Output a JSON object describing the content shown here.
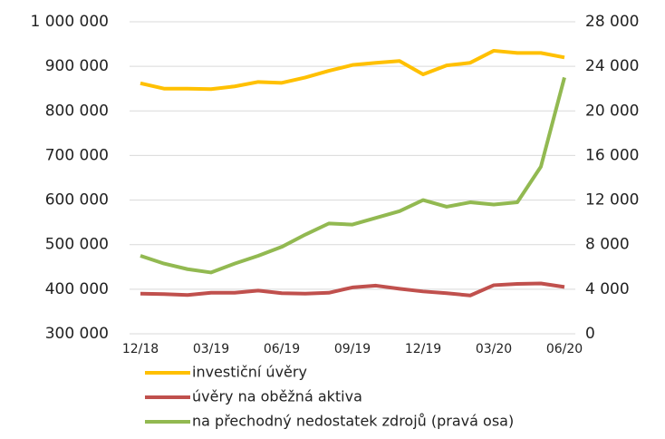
{
  "chart_data": {
    "type": "line",
    "categories": [
      "12/18",
      null,
      null,
      "03/19",
      null,
      null,
      "06/19",
      null,
      null,
      "09/19",
      null,
      null,
      "12/19",
      null,
      null,
      "03/20",
      null,
      null,
      "06/20"
    ],
    "series": [
      {
        "name": "investiční úvěry",
        "color": "#ffc000",
        "values": [
          862000,
          850000,
          850000,
          849000,
          855000,
          865000,
          863000,
          875000,
          890000,
          903000,
          908000,
          912000,
          882000,
          902000,
          908000,
          935000,
          930000,
          930000,
          920000
        ]
      },
      {
        "name": "úvěry na oběžná aktiva",
        "color": "#c0504d",
        "values": [
          390000,
          389000,
          387000,
          392000,
          392000,
          397000,
          391000,
          390000,
          392000,
          404000,
          408000,
          401000,
          395000,
          391000,
          386000,
          409000,
          412000,
          413000,
          405000
        ]
      },
      {
        "name": "na přechodný nedostatek zdrojů (pravá osa)",
        "color": "#92b951",
        "axis": "y2",
        "values": [
          7000,
          6300,
          5800,
          5500,
          6300,
          7000,
          7800,
          8900,
          9900,
          9800,
          10400,
          11000,
          12000,
          11400,
          11800,
          11600,
          11800,
          15000,
          23000
        ]
      }
    ],
    "ylim": [
      300000,
      1000000
    ],
    "yticks": [
      {
        "value": 300000,
        "label": "300 000"
      },
      {
        "value": 400000,
        "label": "400 000"
      },
      {
        "value": 500000,
        "label": "500 000"
      },
      {
        "value": 600000,
        "label": "600 000"
      },
      {
        "value": 700000,
        "label": "700 000"
      },
      {
        "value": 800000,
        "label": "800 000"
      },
      {
        "value": 900000,
        "label": "900 000"
      },
      {
        "value": 1000000,
        "label": "1 000 000"
      }
    ],
    "y2lim": [
      0,
      28000
    ],
    "y2ticks": [
      0,
      {
        "value": 4000,
        "label": "4 000"
      },
      {
        "value": 8000,
        "label": "8 000"
      },
      {
        "value": 12000,
        "label": "12 000"
      },
      {
        "value": 16000,
        "label": "16 000"
      },
      {
        "value": 20000,
        "label": "20 000"
      },
      {
        "value": 24000,
        "label": "24 000"
      },
      {
        "value": 28000,
        "label": "28 000"
      }
    ],
    "grid": true,
    "legend": "bottom"
  }
}
